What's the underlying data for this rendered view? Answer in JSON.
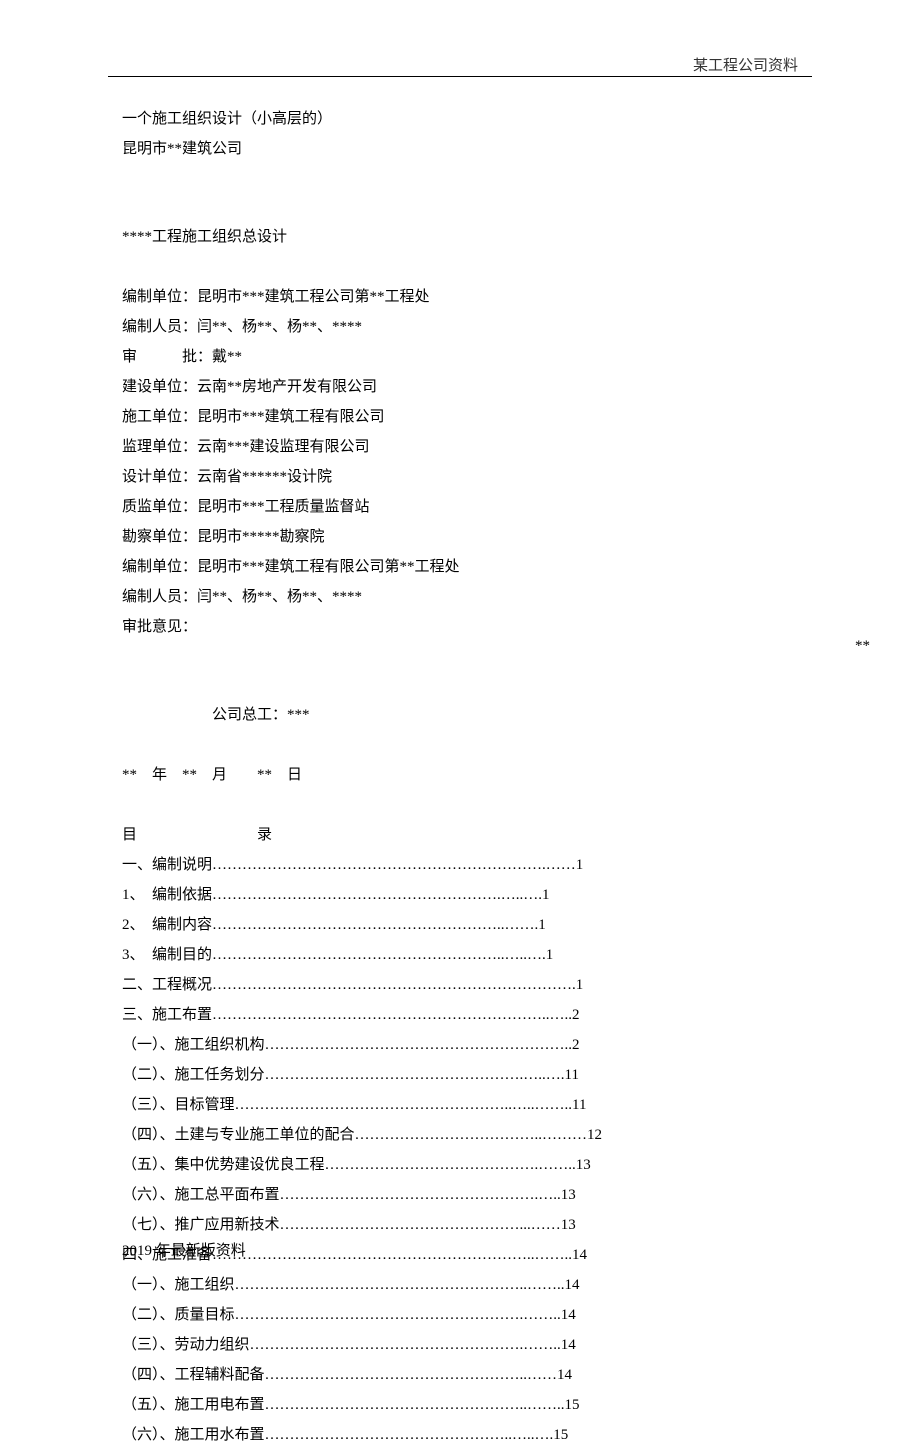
{
  "header_text": "某工程公司资料",
  "title1": "一个施工组织设计（小高层的）",
  "title2": "昆明市**建筑公司",
  "subtitle": "****工程施工组织总设计",
  "info_lines": [
    "编制单位：昆明市***建筑工程公司第**工程处",
    "编制人员：闫**、杨**、杨**、****",
    "审　　　批：戴**",
    "建设单位：云南**房地产开发有限公司",
    "施工单位：昆明市***建筑工程有限公司",
    "监理单位：云南***建设监理有限公司",
    "设计单位：云南省******设计院",
    "质监单位：昆明市***工程质量监督站",
    "勘察单位：昆明市*****勘察院",
    "编制单位：昆明市***建筑工程有限公司第**工程处",
    "编制人员：闫**、杨**、杨**、****",
    "审批意见："
  ],
  "chief_engineer": "公司总工：***",
  "right_mark": "**",
  "date_line": "**　年　**　月　　**　日",
  "toc_title": "目　　　　　　　　录",
  "toc_items": [
    "一、编制说明………………………………………………………….……1",
    "1、　编制依据………………………………………………….…..….1",
    "2、　编制内容…………………………………………………..…….1",
    "3、　编制目的…………………………………………………..…..….1",
    "二、工程概况……………………………………………………………….1",
    "三、施工布置…………………………………………………………..…..2",
    "（一）、施工组织机构……………………………………………………..2",
    "（二）、施工任务划分…………………………………………….…..….11",
    "（三）、目标管理………………………………………………..…..……..11",
    "（四）、土建与专业施工单位的配合………………………………..………12",
    "（五）、集中优势建设优良工程…………………………………….……..13",
    "（六）、施工总平面布置…………………………………………….…..13",
    "（七）、推广应用新技术…………………………………………...……13",
    "四、施工准备………………………………………………………..……..14",
    "（一）、施工组织…………………………………………………..……..14",
    "（二）、质量目标………………………………………………….……..14",
    "（三）、劳动力组织……………………………………………….……..14",
    "（四）、工程辅料配备……………………………………………..……14",
    "（五）、施工用电布置……………………………………………..……..15",
    "（六）、施工用水布置…………………………………………..…..….15"
  ],
  "footer": "2019 年最新版资料"
}
